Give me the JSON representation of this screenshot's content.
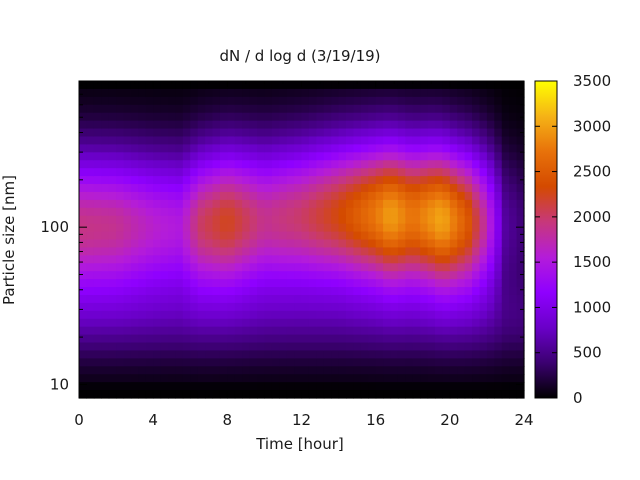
{
  "chart_data": {
    "type": "heatmap",
    "title": "dN / d log d (3/19/19)",
    "xlabel": "Time [hour]",
    "ylabel": "Particle size [nm]",
    "xlim": [
      0,
      24
    ],
    "ylim": [
      8.2,
      850
    ],
    "y_scale": "log",
    "x_ticks": [
      "0",
      "4",
      "8",
      "12",
      "16",
      "20",
      "24"
    ],
    "y_ticks": [
      "10",
      "100"
    ],
    "colorbar": {
      "range": [
        0,
        3500
      ],
      "ticks": [
        "0",
        "500",
        "1000",
        "1500",
        "2000",
        "2500",
        "3000",
        "3500"
      ],
      "colors": [
        "#000000",
        "#3b0070",
        "#6a00c8",
        "#8f00ff",
        "#b41cd9",
        "#c7387a",
        "#d44a00",
        "#e8720a",
        "#f5b316",
        "#ffff00"
      ]
    },
    "ridge_mode_nm": [
      [
        0,
        100
      ],
      [
        2,
        100
      ],
      [
        4,
        100
      ],
      [
        5.5,
        100
      ],
      [
        7,
        105
      ],
      [
        8,
        108
      ],
      [
        10,
        110
      ],
      [
        12,
        115
      ],
      [
        14,
        120
      ],
      [
        16,
        120
      ],
      [
        17,
        118
      ],
      [
        19,
        115
      ],
      [
        20,
        110
      ],
      [
        22,
        105
      ],
      [
        24,
        100
      ]
    ],
    "peak_concentration": [
      [
        0,
        1900
      ],
      [
        2,
        1850
      ],
      [
        4,
        1600
      ],
      [
        5.5,
        1500
      ],
      [
        6.5,
        2000
      ],
      [
        8,
        2250
      ],
      [
        10,
        1850
      ],
      [
        12,
        2000
      ],
      [
        14,
        2300
      ],
      [
        16,
        2750
      ],
      [
        16.8,
        3000
      ],
      [
        18,
        2700
      ],
      [
        19.6,
        3050
      ],
      [
        21,
        2450
      ],
      [
        22,
        1700
      ],
      [
        23,
        600
      ],
      [
        24,
        400
      ]
    ]
  }
}
